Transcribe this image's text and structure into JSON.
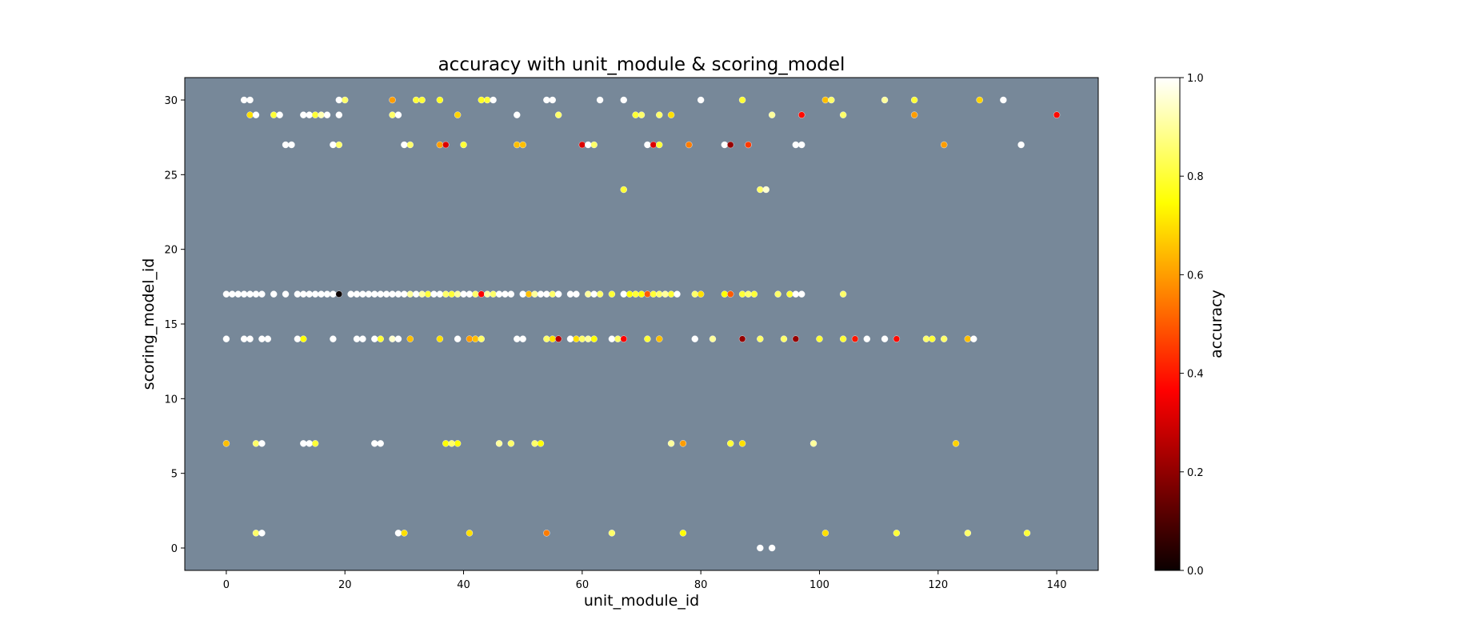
{
  "chart_data": {
    "type": "scatter",
    "title": "accuracy with unit_module & scoring_model",
    "xlabel": "unit_module_id",
    "ylabel": "scoring_model_id",
    "colorbar_label": "accuracy",
    "colormap": "hot",
    "background_color": "#778899",
    "xlim": [
      -7,
      147
    ],
    "ylim": [
      -1.5,
      31.5
    ],
    "x_ticks": [
      0,
      20,
      40,
      60,
      80,
      100,
      120,
      140
    ],
    "y_ticks": [
      0,
      5,
      10,
      15,
      20,
      25,
      30
    ],
    "colorbar_ticks": [
      0.0,
      0.2,
      0.4,
      0.6,
      0.8,
      1.0
    ],
    "colorbar_tick_labels": [
      "0.0",
      "0.2",
      "0.4",
      "0.6",
      "0.8",
      "1.0"
    ],
    "clim": [
      0,
      1
    ],
    "grid": false,
    "points": [
      {
        "x": 3,
        "y": 30,
        "v": 1.0
      },
      {
        "x": 4,
        "y": 30,
        "v": 1.0
      },
      {
        "x": 19,
        "y": 30,
        "v": 1.0
      },
      {
        "x": 20,
        "y": 30,
        "v": 0.85
      },
      {
        "x": 28,
        "y": 30,
        "v": 0.6
      },
      {
        "x": 32,
        "y": 30,
        "v": 0.8
      },
      {
        "x": 33,
        "y": 30,
        "v": 0.8
      },
      {
        "x": 36,
        "y": 30,
        "v": 0.78
      },
      {
        "x": 43,
        "y": 30,
        "v": 0.78
      },
      {
        "x": 44,
        "y": 30,
        "v": 0.8
      },
      {
        "x": 45,
        "y": 30,
        "v": 1.0
      },
      {
        "x": 54,
        "y": 30,
        "v": 1.0
      },
      {
        "x": 55,
        "y": 30,
        "v": 1.0
      },
      {
        "x": 63,
        "y": 30,
        "v": 1.0
      },
      {
        "x": 67,
        "y": 30,
        "v": 1.0
      },
      {
        "x": 80,
        "y": 30,
        "v": 1.0
      },
      {
        "x": 87,
        "y": 30,
        "v": 0.8
      },
      {
        "x": 101,
        "y": 30,
        "v": 0.65
      },
      {
        "x": 102,
        "y": 30,
        "v": 0.85
      },
      {
        "x": 111,
        "y": 30,
        "v": 0.9
      },
      {
        "x": 116,
        "y": 30,
        "v": 0.8
      },
      {
        "x": 127,
        "y": 30,
        "v": 0.68
      },
      {
        "x": 131,
        "y": 30,
        "v": 1.0
      },
      {
        "x": 4,
        "y": 29,
        "v": 0.7
      },
      {
        "x": 5,
        "y": 29,
        "v": 1.0
      },
      {
        "x": 8,
        "y": 29,
        "v": 0.8
      },
      {
        "x": 9,
        "y": 29,
        "v": 1.0
      },
      {
        "x": 13,
        "y": 29,
        "v": 1.0
      },
      {
        "x": 14,
        "y": 29,
        "v": 1.0
      },
      {
        "x": 15,
        "y": 29,
        "v": 0.8
      },
      {
        "x": 16,
        "y": 29,
        "v": 0.92
      },
      {
        "x": 17,
        "y": 29,
        "v": 1.0
      },
      {
        "x": 19,
        "y": 29,
        "v": 1.0
      },
      {
        "x": 28,
        "y": 29,
        "v": 0.85
      },
      {
        "x": 29,
        "y": 29,
        "v": 1.0
      },
      {
        "x": 39,
        "y": 29,
        "v": 0.68
      },
      {
        "x": 49,
        "y": 29,
        "v": 1.0
      },
      {
        "x": 56,
        "y": 29,
        "v": 0.85
      },
      {
        "x": 69,
        "y": 29,
        "v": 0.8
      },
      {
        "x": 70,
        "y": 29,
        "v": 0.85
      },
      {
        "x": 73,
        "y": 29,
        "v": 0.85
      },
      {
        "x": 75,
        "y": 29,
        "v": 0.7
      },
      {
        "x": 92,
        "y": 29,
        "v": 0.9
      },
      {
        "x": 97,
        "y": 29,
        "v": 0.38
      },
      {
        "x": 104,
        "y": 29,
        "v": 0.85
      },
      {
        "x": 116,
        "y": 29,
        "v": 0.6
      },
      {
        "x": 140,
        "y": 29,
        "v": 0.38
      },
      {
        "x": 10,
        "y": 27,
        "v": 1.0
      },
      {
        "x": 11,
        "y": 27,
        "v": 1.0
      },
      {
        "x": 18,
        "y": 27,
        "v": 1.0
      },
      {
        "x": 19,
        "y": 27,
        "v": 0.85
      },
      {
        "x": 30,
        "y": 27,
        "v": 1.0
      },
      {
        "x": 31,
        "y": 27,
        "v": 0.85
      },
      {
        "x": 36,
        "y": 27,
        "v": 0.6
      },
      {
        "x": 37,
        "y": 27,
        "v": 0.3
      },
      {
        "x": 40,
        "y": 27,
        "v": 0.8
      },
      {
        "x": 49,
        "y": 27,
        "v": 0.65
      },
      {
        "x": 50,
        "y": 27,
        "v": 0.65
      },
      {
        "x": 60,
        "y": 27,
        "v": 0.3
      },
      {
        "x": 61,
        "y": 27,
        "v": 1.0
      },
      {
        "x": 62,
        "y": 27,
        "v": 0.85
      },
      {
        "x": 71,
        "y": 27,
        "v": 1.0
      },
      {
        "x": 72,
        "y": 27,
        "v": 0.3
      },
      {
        "x": 73,
        "y": 27,
        "v": 0.8
      },
      {
        "x": 78,
        "y": 27,
        "v": 0.55
      },
      {
        "x": 84,
        "y": 27,
        "v": 1.0
      },
      {
        "x": 85,
        "y": 27,
        "v": 0.2
      },
      {
        "x": 88,
        "y": 27,
        "v": 0.45
      },
      {
        "x": 96,
        "y": 27,
        "v": 1.0
      },
      {
        "x": 97,
        "y": 27,
        "v": 1.0
      },
      {
        "x": 121,
        "y": 27,
        "v": 0.6
      },
      {
        "x": 134,
        "y": 27,
        "v": 1.0
      },
      {
        "x": 67,
        "y": 24,
        "v": 0.8
      },
      {
        "x": 90,
        "y": 24,
        "v": 0.85
      },
      {
        "x": 91,
        "y": 24,
        "v": 0.95
      },
      {
        "x": 0,
        "y": 17,
        "v": 1.0
      },
      {
        "x": 1,
        "y": 17,
        "v": 1.0
      },
      {
        "x": 2,
        "y": 17,
        "v": 1.0
      },
      {
        "x": 3,
        "y": 17,
        "v": 1.0
      },
      {
        "x": 4,
        "y": 17,
        "v": 1.0
      },
      {
        "x": 5,
        "y": 17,
        "v": 1.0
      },
      {
        "x": 6,
        "y": 17,
        "v": 1.0
      },
      {
        "x": 8,
        "y": 17,
        "v": 1.0
      },
      {
        "x": 10,
        "y": 17,
        "v": 1.0
      },
      {
        "x": 12,
        "y": 17,
        "v": 1.0
      },
      {
        "x": 13,
        "y": 17,
        "v": 1.0
      },
      {
        "x": 14,
        "y": 17,
        "v": 1.0
      },
      {
        "x": 15,
        "y": 17,
        "v": 1.0
      },
      {
        "x": 16,
        "y": 17,
        "v": 1.0
      },
      {
        "x": 17,
        "y": 17,
        "v": 1.0
      },
      {
        "x": 18,
        "y": 17,
        "v": 1.0
      },
      {
        "x": 19,
        "y": 17,
        "v": 0.0
      },
      {
        "x": 21,
        "y": 17,
        "v": 1.0
      },
      {
        "x": 22,
        "y": 17,
        "v": 1.0
      },
      {
        "x": 23,
        "y": 17,
        "v": 1.0
      },
      {
        "x": 24,
        "y": 17,
        "v": 1.0
      },
      {
        "x": 25,
        "y": 17,
        "v": 1.0
      },
      {
        "x": 26,
        "y": 17,
        "v": 1.0
      },
      {
        "x": 27,
        "y": 17,
        "v": 1.0
      },
      {
        "x": 28,
        "y": 17,
        "v": 1.0
      },
      {
        "x": 29,
        "y": 17,
        "v": 1.0
      },
      {
        "x": 30,
        "y": 17,
        "v": 1.0
      },
      {
        "x": 31,
        "y": 17,
        "v": 0.9
      },
      {
        "x": 32,
        "y": 17,
        "v": 1.0
      },
      {
        "x": 33,
        "y": 17,
        "v": 0.9
      },
      {
        "x": 34,
        "y": 17,
        "v": 0.8
      },
      {
        "x": 35,
        "y": 17,
        "v": 1.0
      },
      {
        "x": 36,
        "y": 17,
        "v": 1.0
      },
      {
        "x": 37,
        "y": 17,
        "v": 0.85
      },
      {
        "x": 38,
        "y": 17,
        "v": 0.8
      },
      {
        "x": 39,
        "y": 17,
        "v": 0.9
      },
      {
        "x": 40,
        "y": 17,
        "v": 1.0
      },
      {
        "x": 41,
        "y": 17,
        "v": 1.0
      },
      {
        "x": 42,
        "y": 17,
        "v": 0.85
      },
      {
        "x": 43,
        "y": 17,
        "v": 0.35
      },
      {
        "x": 44,
        "y": 17,
        "v": 0.9
      },
      {
        "x": 45,
        "y": 17,
        "v": 0.85
      },
      {
        "x": 46,
        "y": 17,
        "v": 1.0
      },
      {
        "x": 47,
        "y": 17,
        "v": 1.0
      },
      {
        "x": 48,
        "y": 17,
        "v": 1.0
      },
      {
        "x": 50,
        "y": 17,
        "v": 1.0
      },
      {
        "x": 51,
        "y": 17,
        "v": 0.65
      },
      {
        "x": 52,
        "y": 17,
        "v": 0.9
      },
      {
        "x": 53,
        "y": 17,
        "v": 1.0
      },
      {
        "x": 54,
        "y": 17,
        "v": 1.0
      },
      {
        "x": 55,
        "y": 17,
        "v": 0.85
      },
      {
        "x": 56,
        "y": 17,
        "v": 1.0
      },
      {
        "x": 58,
        "y": 17,
        "v": 1.0
      },
      {
        "x": 59,
        "y": 17,
        "v": 1.0
      },
      {
        "x": 61,
        "y": 17,
        "v": 0.9
      },
      {
        "x": 62,
        "y": 17,
        "v": 1.0
      },
      {
        "x": 63,
        "y": 17,
        "v": 0.85
      },
      {
        "x": 65,
        "y": 17,
        "v": 0.8
      },
      {
        "x": 67,
        "y": 17,
        "v": 1.0
      },
      {
        "x": 68,
        "y": 17,
        "v": 0.75
      },
      {
        "x": 69,
        "y": 17,
        "v": 0.8
      },
      {
        "x": 70,
        "y": 17,
        "v": 0.75
      },
      {
        "x": 71,
        "y": 17,
        "v": 0.5
      },
      {
        "x": 72,
        "y": 17,
        "v": 0.8
      },
      {
        "x": 73,
        "y": 17,
        "v": 0.85
      },
      {
        "x": 74,
        "y": 17,
        "v": 0.9
      },
      {
        "x": 75,
        "y": 17,
        "v": 0.8
      },
      {
        "x": 76,
        "y": 17,
        "v": 1.0
      },
      {
        "x": 79,
        "y": 17,
        "v": 0.85
      },
      {
        "x": 80,
        "y": 17,
        "v": 0.7
      },
      {
        "x": 84,
        "y": 17,
        "v": 0.75
      },
      {
        "x": 85,
        "y": 17,
        "v": 0.5
      },
      {
        "x": 87,
        "y": 17,
        "v": 0.8
      },
      {
        "x": 88,
        "y": 17,
        "v": 0.85
      },
      {
        "x": 89,
        "y": 17,
        "v": 0.8
      },
      {
        "x": 93,
        "y": 17,
        "v": 0.85
      },
      {
        "x": 95,
        "y": 17,
        "v": 0.8
      },
      {
        "x": 96,
        "y": 17,
        "v": 1.0
      },
      {
        "x": 97,
        "y": 17,
        "v": 1.0
      },
      {
        "x": 104,
        "y": 17,
        "v": 0.85
      },
      {
        "x": 0,
        "y": 14,
        "v": 1.0
      },
      {
        "x": 3,
        "y": 14,
        "v": 1.0
      },
      {
        "x": 4,
        "y": 14,
        "v": 1.0
      },
      {
        "x": 6,
        "y": 14,
        "v": 1.0
      },
      {
        "x": 7,
        "y": 14,
        "v": 1.0
      },
      {
        "x": 12,
        "y": 14,
        "v": 1.0
      },
      {
        "x": 13,
        "y": 14,
        "v": 0.75
      },
      {
        "x": 18,
        "y": 14,
        "v": 1.0
      },
      {
        "x": 22,
        "y": 14,
        "v": 1.0
      },
      {
        "x": 23,
        "y": 14,
        "v": 1.0
      },
      {
        "x": 25,
        "y": 14,
        "v": 1.0
      },
      {
        "x": 26,
        "y": 14,
        "v": 0.8
      },
      {
        "x": 28,
        "y": 14,
        "v": 0.95
      },
      {
        "x": 29,
        "y": 14,
        "v": 1.0
      },
      {
        "x": 31,
        "y": 14,
        "v": 0.65
      },
      {
        "x": 36,
        "y": 14,
        "v": 0.7
      },
      {
        "x": 39,
        "y": 14,
        "v": 1.0
      },
      {
        "x": 41,
        "y": 14,
        "v": 0.6
      },
      {
        "x": 42,
        "y": 14,
        "v": 0.65
      },
      {
        "x": 43,
        "y": 14,
        "v": 0.85
      },
      {
        "x": 49,
        "y": 14,
        "v": 1.0
      },
      {
        "x": 50,
        "y": 14,
        "v": 1.0
      },
      {
        "x": 54,
        "y": 14,
        "v": 0.85
      },
      {
        "x": 55,
        "y": 14,
        "v": 0.7
      },
      {
        "x": 56,
        "y": 14,
        "v": 0.25
      },
      {
        "x": 58,
        "y": 14,
        "v": 1.0
      },
      {
        "x": 59,
        "y": 14,
        "v": 0.7
      },
      {
        "x": 60,
        "y": 14,
        "v": 0.85
      },
      {
        "x": 61,
        "y": 14,
        "v": 0.9
      },
      {
        "x": 62,
        "y": 14,
        "v": 0.75
      },
      {
        "x": 65,
        "y": 14,
        "v": 1.0
      },
      {
        "x": 66,
        "y": 14,
        "v": 0.85
      },
      {
        "x": 67,
        "y": 14,
        "v": 0.35
      },
      {
        "x": 71,
        "y": 14,
        "v": 0.8
      },
      {
        "x": 73,
        "y": 14,
        "v": 0.65
      },
      {
        "x": 79,
        "y": 14,
        "v": 1.0
      },
      {
        "x": 82,
        "y": 14,
        "v": 0.9
      },
      {
        "x": 87,
        "y": 14,
        "v": 0.2
      },
      {
        "x": 90,
        "y": 14,
        "v": 0.85
      },
      {
        "x": 94,
        "y": 14,
        "v": 0.85
      },
      {
        "x": 96,
        "y": 14,
        "v": 0.2
      },
      {
        "x": 100,
        "y": 14,
        "v": 0.8
      },
      {
        "x": 104,
        "y": 14,
        "v": 0.8
      },
      {
        "x": 106,
        "y": 14,
        "v": 0.4
      },
      {
        "x": 108,
        "y": 14,
        "v": 1.0
      },
      {
        "x": 111,
        "y": 14,
        "v": 1.0
      },
      {
        "x": 113,
        "y": 14,
        "v": 0.38
      },
      {
        "x": 118,
        "y": 14,
        "v": 0.85
      },
      {
        "x": 119,
        "y": 14,
        "v": 0.8
      },
      {
        "x": 121,
        "y": 14,
        "v": 0.85
      },
      {
        "x": 125,
        "y": 14,
        "v": 0.65
      },
      {
        "x": 126,
        "y": 14,
        "v": 1.0
      },
      {
        "x": 0,
        "y": 7,
        "v": 0.65
      },
      {
        "x": 5,
        "y": 7,
        "v": 0.85
      },
      {
        "x": 6,
        "y": 7,
        "v": 1.0
      },
      {
        "x": 13,
        "y": 7,
        "v": 1.0
      },
      {
        "x": 14,
        "y": 7,
        "v": 1.0
      },
      {
        "x": 15,
        "y": 7,
        "v": 0.8
      },
      {
        "x": 25,
        "y": 7,
        "v": 1.0
      },
      {
        "x": 26,
        "y": 7,
        "v": 1.0
      },
      {
        "x": 37,
        "y": 7,
        "v": 0.75
      },
      {
        "x": 38,
        "y": 7,
        "v": 0.85
      },
      {
        "x": 39,
        "y": 7,
        "v": 0.75
      },
      {
        "x": 46,
        "y": 7,
        "v": 0.9
      },
      {
        "x": 48,
        "y": 7,
        "v": 0.85
      },
      {
        "x": 52,
        "y": 7,
        "v": 0.85
      },
      {
        "x": 53,
        "y": 7,
        "v": 0.75
      },
      {
        "x": 75,
        "y": 7,
        "v": 0.9
      },
      {
        "x": 77,
        "y": 7,
        "v": 0.6
      },
      {
        "x": 85,
        "y": 7,
        "v": 0.8
      },
      {
        "x": 87,
        "y": 7,
        "v": 0.7
      },
      {
        "x": 99,
        "y": 7,
        "v": 0.9
      },
      {
        "x": 123,
        "y": 7,
        "v": 0.68
      },
      {
        "x": 5,
        "y": 1,
        "v": 0.85
      },
      {
        "x": 6,
        "y": 1,
        "v": 1.0
      },
      {
        "x": 29,
        "y": 1,
        "v": 1.0
      },
      {
        "x": 30,
        "y": 1,
        "v": 0.7
      },
      {
        "x": 41,
        "y": 1,
        "v": 0.7
      },
      {
        "x": 54,
        "y": 1,
        "v": 0.55
      },
      {
        "x": 65,
        "y": 1,
        "v": 0.85
      },
      {
        "x": 77,
        "y": 1,
        "v": 0.75
      },
      {
        "x": 101,
        "y": 1,
        "v": 0.7
      },
      {
        "x": 113,
        "y": 1,
        "v": 0.8
      },
      {
        "x": 125,
        "y": 1,
        "v": 0.85
      },
      {
        "x": 135,
        "y": 1,
        "v": 0.8
      },
      {
        "x": 90,
        "y": 0,
        "v": 1.0
      },
      {
        "x": 92,
        "y": 0,
        "v": 1.0
      }
    ]
  }
}
